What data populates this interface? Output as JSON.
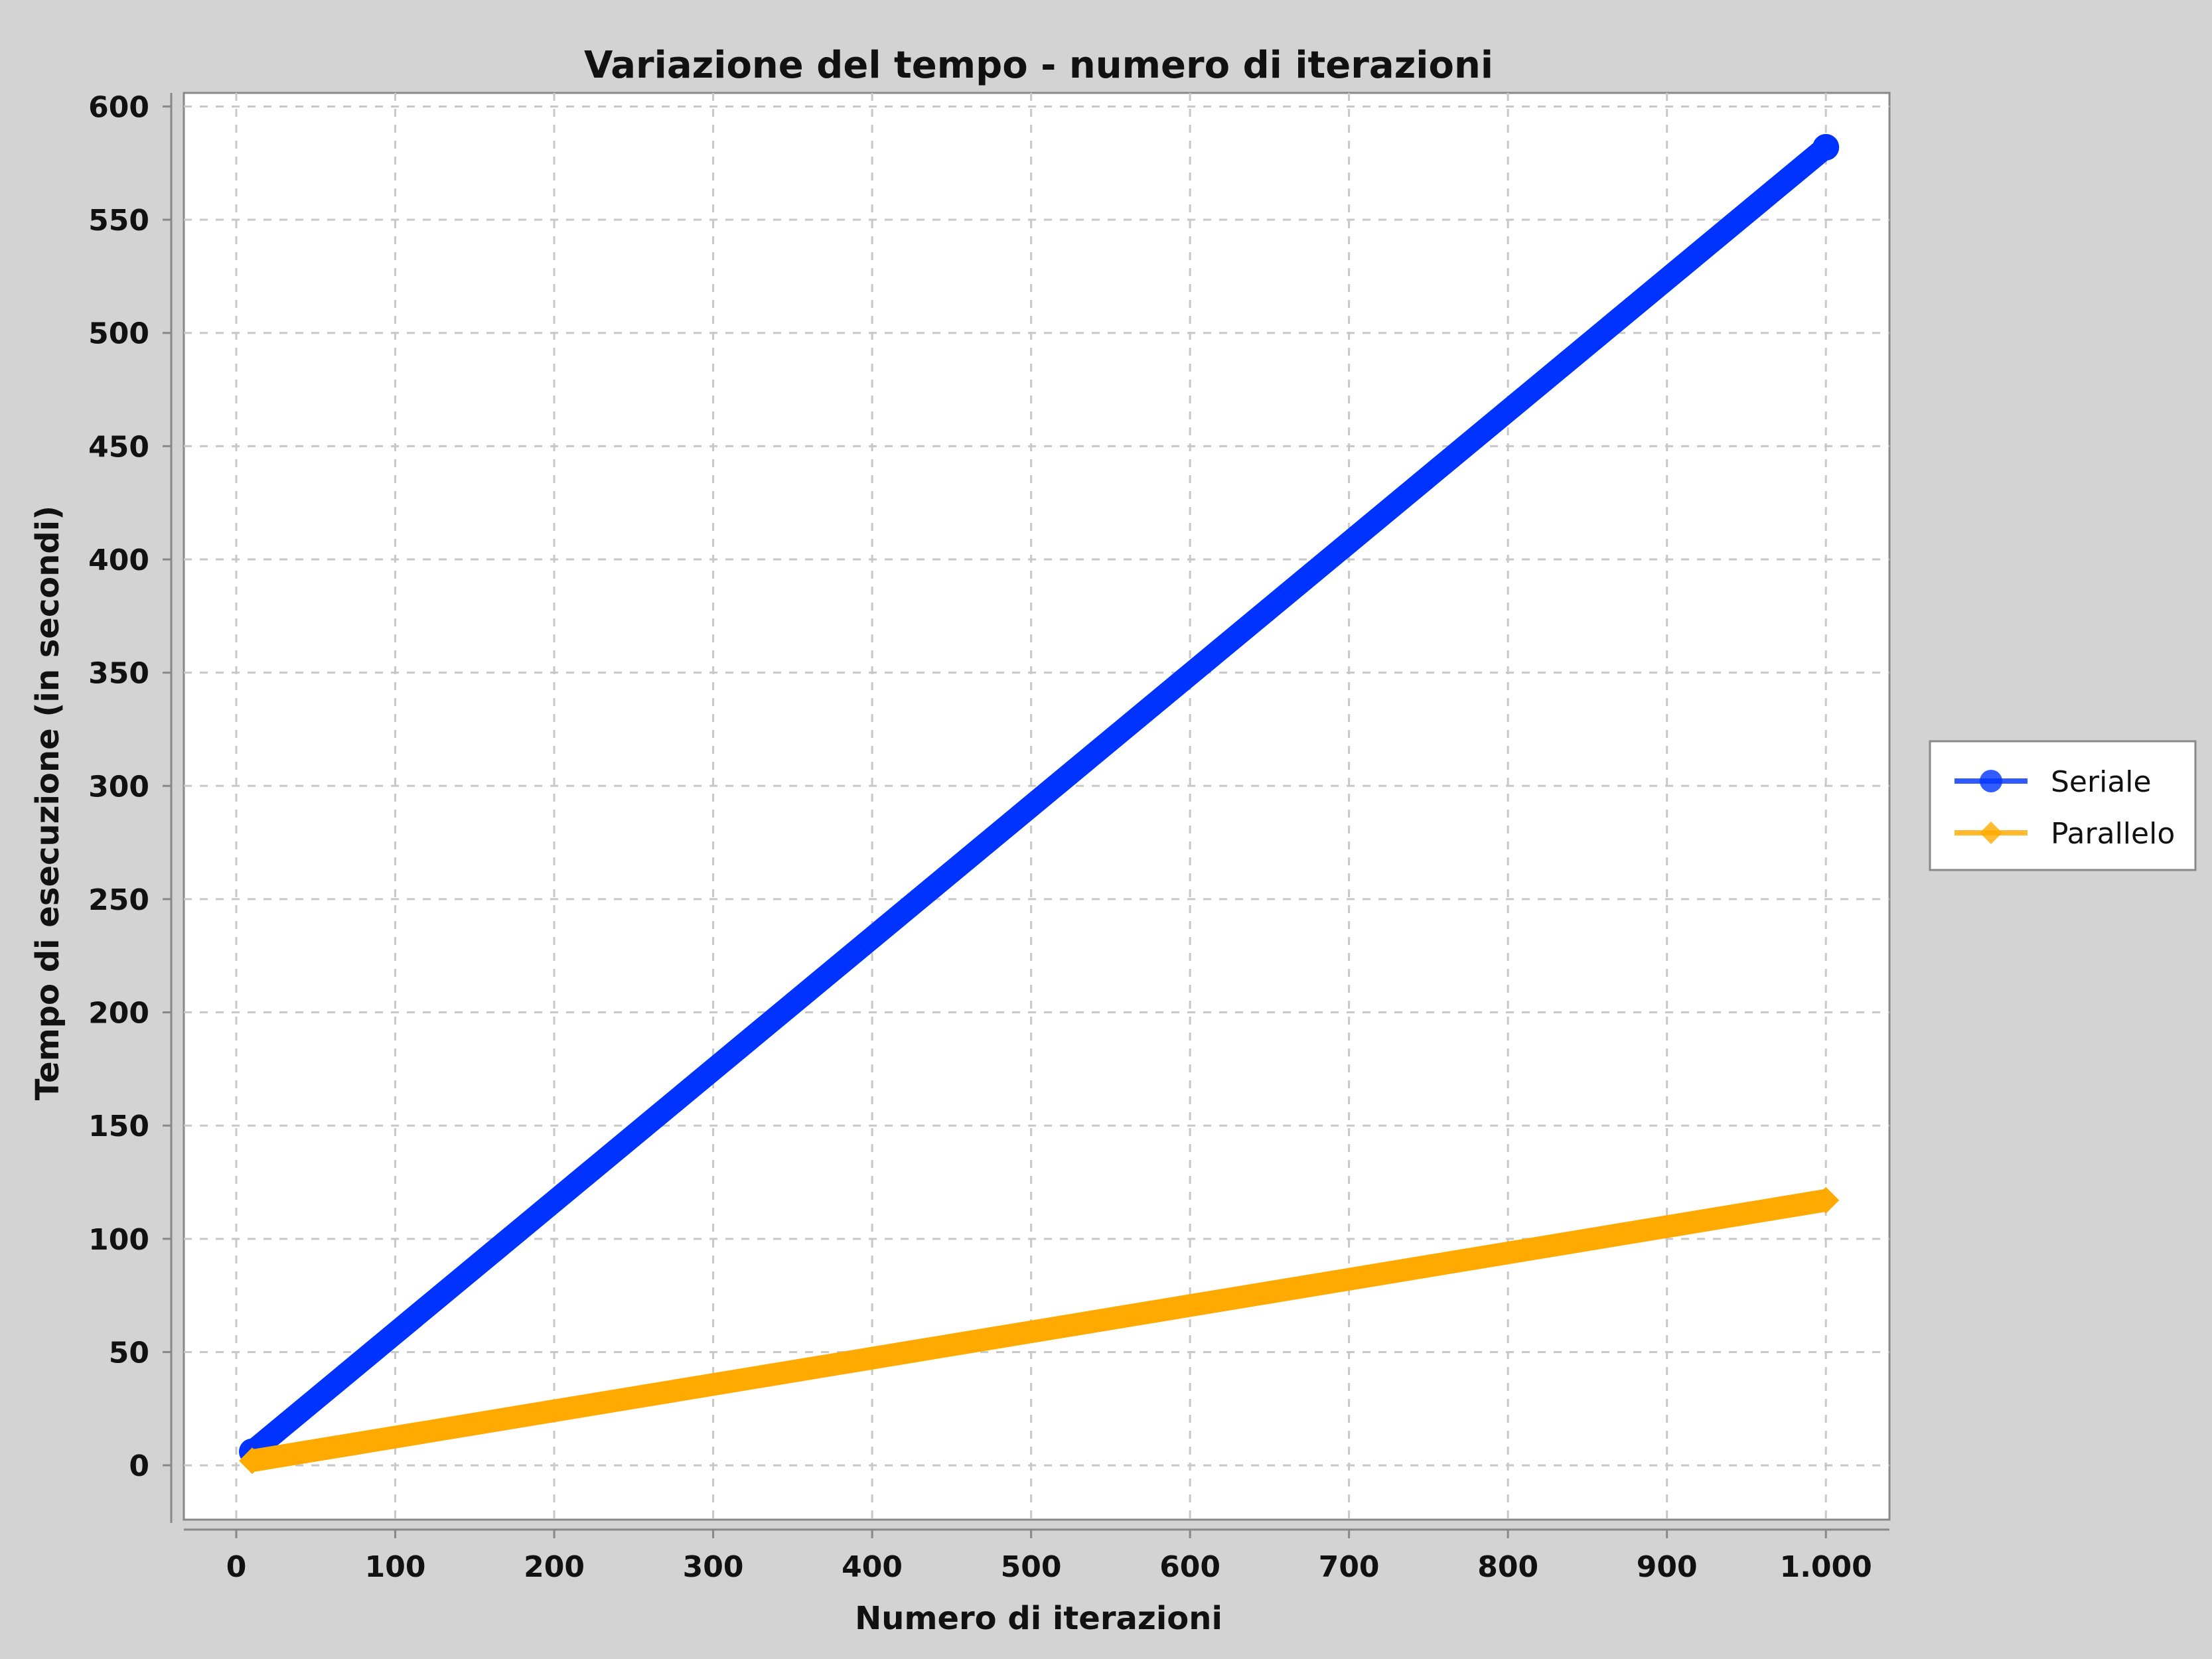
{
  "chart_data": {
    "type": "line",
    "title": "Variazione del tempo - numero di iterazioni",
    "xlabel": "Numero di iterazioni",
    "ylabel": "Tempo di esecuzione (in secondi)",
    "xlim": [
      -33,
      1040
    ],
    "ylim": [
      -24,
      606
    ],
    "x_ticks": [
      0,
      100,
      200,
      300,
      400,
      500,
      600,
      700,
      800,
      900,
      1000
    ],
    "x_tick_labels": [
      "0",
      "100",
      "200",
      "300",
      "400",
      "500",
      "600",
      "700",
      "800",
      "900",
      "1.000"
    ],
    "y_ticks": [
      0,
      50,
      100,
      150,
      200,
      250,
      300,
      350,
      400,
      450,
      500,
      550,
      600
    ],
    "y_tick_labels": [
      "0",
      "50",
      "100",
      "150",
      "200",
      "250",
      "300",
      "350",
      "400",
      "450",
      "500",
      "550",
      "600"
    ],
    "grid": true,
    "legend_position": "right",
    "series": [
      {
        "name": "Seriale",
        "color": "#0033ff",
        "marker": "circle",
        "x": [
          10,
          1000
        ],
        "y": [
          6,
          582
        ]
      },
      {
        "name": "Parallelo",
        "color": "#ffaa00",
        "marker": "diamond",
        "x": [
          10,
          1000
        ],
        "y": [
          2,
          117
        ]
      }
    ]
  }
}
